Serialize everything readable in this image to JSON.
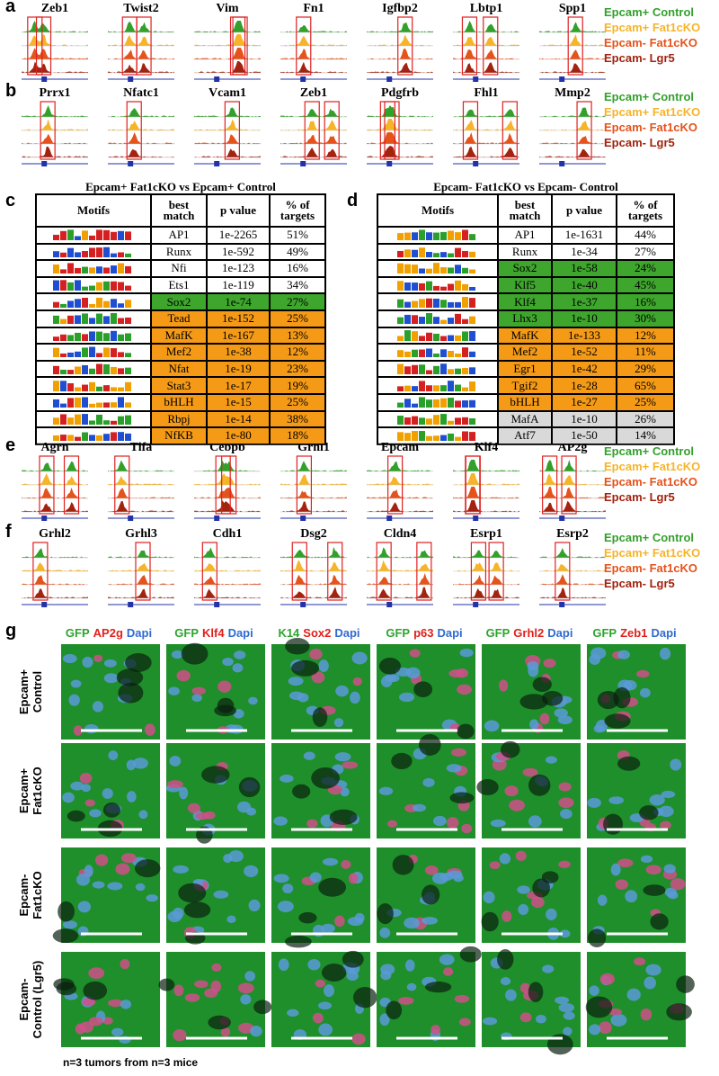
{
  "panels": {
    "a": {
      "label": "a",
      "genes": [
        "Zeb1",
        "Twist2",
        "Vim",
        "Fn1",
        "Igfbp2",
        "Lbtp1",
        "Spp1"
      ],
      "legend": [
        {
          "text": "Epcam+ Control",
          "color": "#34a02c"
        },
        {
          "text": "Epcam+ Fat1cKO",
          "color": "#f6b42a"
        },
        {
          "text": "Epcam- Fat1cKO",
          "color": "#e4531c"
        },
        {
          "text": "Epcam- Lgr5",
          "color": "#a2230f"
        }
      ]
    },
    "b": {
      "label": "b",
      "genes": [
        "Prrx1",
        "Nfatc1",
        "Vcam1",
        "Zeb1",
        "Pdgfrb",
        "Fhl1",
        "Mmp2"
      ],
      "legend": [
        {
          "text": "Epcam+ Control",
          "color": "#34a02c"
        },
        {
          "text": "Epcam+ Fat1cKO",
          "color": "#f6b42a"
        },
        {
          "text": "Epcam- Fat1cKO",
          "color": "#e4531c"
        },
        {
          "text": "Epcam- Lgr5",
          "color": "#a2230f"
        }
      ]
    },
    "c": {
      "label": "c",
      "title": "Epcam+ Fat1cKO vs Epcam+ Control",
      "header": [
        "Motifs",
        "best match",
        "p value",
        "% of targets"
      ],
      "rows": [
        {
          "match": "AP1",
          "p": "1e-2265",
          "pct": "51%"
        },
        {
          "match": "Runx",
          "p": "1e-592",
          "pct": "49%"
        },
        {
          "match": "Nfi",
          "p": "1e-123",
          "pct": "16%"
        },
        {
          "match": "Ets1",
          "p": "1e-119",
          "pct": "34%"
        },
        {
          "match": "Sox2",
          "p": "1e-74",
          "pct": "27%",
          "color": "#3ea62c"
        },
        {
          "match": "Tead",
          "p": "1e-152",
          "pct": "25%",
          "color": "#f59a16"
        },
        {
          "match": "MafK",
          "p": "1e-167",
          "pct": "13%",
          "color": "#f59a16"
        },
        {
          "match": "Mef2",
          "p": "1e-38",
          "pct": "12%",
          "color": "#f59a16"
        },
        {
          "match": "Nfat",
          "p": "1e-19",
          "pct": "23%",
          "color": "#f59a16"
        },
        {
          "match": "Stat3",
          "p": "1e-17",
          "pct": "19%",
          "color": "#f59a16"
        },
        {
          "match": "bHLH",
          "p": "1e-15",
          "pct": "25%",
          "color": "#f59a16"
        },
        {
          "match": "Rbpj",
          "p": "1e-14",
          "pct": "38%",
          "color": "#f59a16"
        },
        {
          "match": "NfKB",
          "p": "1e-80",
          "pct": "18%",
          "color": "#f59a16"
        }
      ]
    },
    "d": {
      "label": "d",
      "title": "Epcam- Fat1cKO vs Epcam- Control",
      "header": [
        "Motifs",
        "best match",
        "p value",
        "% of targets"
      ],
      "rows": [
        {
          "match": "AP1",
          "p": "1e-1631",
          "pct": "44%"
        },
        {
          "match": "Runx",
          "p": "1e-34",
          "pct": "27%"
        },
        {
          "match": "Sox2",
          "p": "1e-58",
          "pct": "24%",
          "color": "#3ea62c"
        },
        {
          "match": "Klf5",
          "p": "1e-40",
          "pct": "45%",
          "color": "#3ea62c"
        },
        {
          "match": "Klf4",
          "p": "1e-37",
          "pct": "16%",
          "color": "#3ea62c"
        },
        {
          "match": "Lhx3",
          "p": "1e-10",
          "pct": "30%",
          "color": "#3ea62c"
        },
        {
          "match": "MafK",
          "p": "1e-133",
          "pct": "12%",
          "color": "#f59a16"
        },
        {
          "match": "Mef2",
          "p": "1e-52",
          "pct": "11%",
          "color": "#f59a16"
        },
        {
          "match": "Egr1",
          "p": "1e-42",
          "pct": "29%",
          "color": "#f59a16"
        },
        {
          "match": "Tgif2",
          "p": "1e-28",
          "pct": "65%",
          "color": "#f59a16"
        },
        {
          "match": "bHLH",
          "p": "1e-27",
          "pct": "25%",
          "color": "#f59a16"
        },
        {
          "match": "MafA",
          "p": "1e-10",
          "pct": "26%",
          "color": "#d9d9d9"
        },
        {
          "match": "Atf7",
          "p": "1e-50",
          "pct": "14%",
          "color": "#d9d9d9"
        }
      ]
    },
    "e": {
      "label": "e",
      "genes": [
        "Agrn",
        "Tifa",
        "Cebpb",
        "Grhl1",
        "Epcam",
        "Klf4",
        "AP2g"
      ],
      "legend": [
        {
          "text": "Epcam+ Control",
          "color": "#34a02c"
        },
        {
          "text": "Epcam+ Fat1cKO",
          "color": "#f6b42a"
        },
        {
          "text": "Epcam- Fat1cKO",
          "color": "#e4531c"
        },
        {
          "text": "Epcam- Lgr5",
          "color": "#a2230f"
        }
      ]
    },
    "f": {
      "label": "f",
      "genes": [
        "Grhl2",
        "Grhl3",
        "Cdh1",
        "Dsg2",
        "Cldn4",
        "Esrp1",
        "Esrp2"
      ],
      "legend": [
        {
          "text": "Epcam+ Control",
          "color": "#34a02c"
        },
        {
          "text": "Epcam+ Fat1cKO",
          "color": "#f6b42a"
        },
        {
          "text": "Epcam- Fat1cKO",
          "color": "#e4531c"
        },
        {
          "text": "Epcam- Lgr5",
          "color": "#a2230f"
        }
      ]
    },
    "g": {
      "label": "g",
      "columns": [
        [
          {
            "text": "GFP",
            "color": "#2ea42e"
          },
          {
            "text": "AP2g",
            "color": "#e0201b"
          },
          {
            "text": "Dapi",
            "color": "#2f6bd0"
          }
        ],
        [
          {
            "text": "GFP",
            "color": "#2ea42e"
          },
          {
            "text": "Klf4",
            "color": "#e0201b"
          },
          {
            "text": "Dapi",
            "color": "#2f6bd0"
          }
        ],
        [
          {
            "text": "K14",
            "color": "#2ea42e"
          },
          {
            "text": "Sox2",
            "color": "#e0201b"
          },
          {
            "text": "Dapi",
            "color": "#2f6bd0"
          }
        ],
        [
          {
            "text": "GFP",
            "color": "#2ea42e"
          },
          {
            "text": "p63",
            "color": "#e0201b"
          },
          {
            "text": "Dapi",
            "color": "#2f6bd0"
          }
        ],
        [
          {
            "text": "GFP",
            "color": "#2ea42e"
          },
          {
            "text": "Grhl2",
            "color": "#e0201b"
          },
          {
            "text": "Dapi",
            "color": "#2f6bd0"
          }
        ],
        [
          {
            "text": "GFP",
            "color": "#2ea42e"
          },
          {
            "text": "Zeb1",
            "color": "#e0201b"
          },
          {
            "text": "Dapi",
            "color": "#2f6bd0"
          }
        ]
      ],
      "rows": [
        [
          "Epcam+",
          "Control"
        ],
        [
          "Epcam+",
          "Fat1cKO"
        ],
        [
          "Epcam-",
          "Fat1cKO"
        ],
        [
          "Epcam-",
          "Control (Lgr5)"
        ]
      ],
      "footnote": "n=3 tumors from n=3 mice"
    }
  }
}
